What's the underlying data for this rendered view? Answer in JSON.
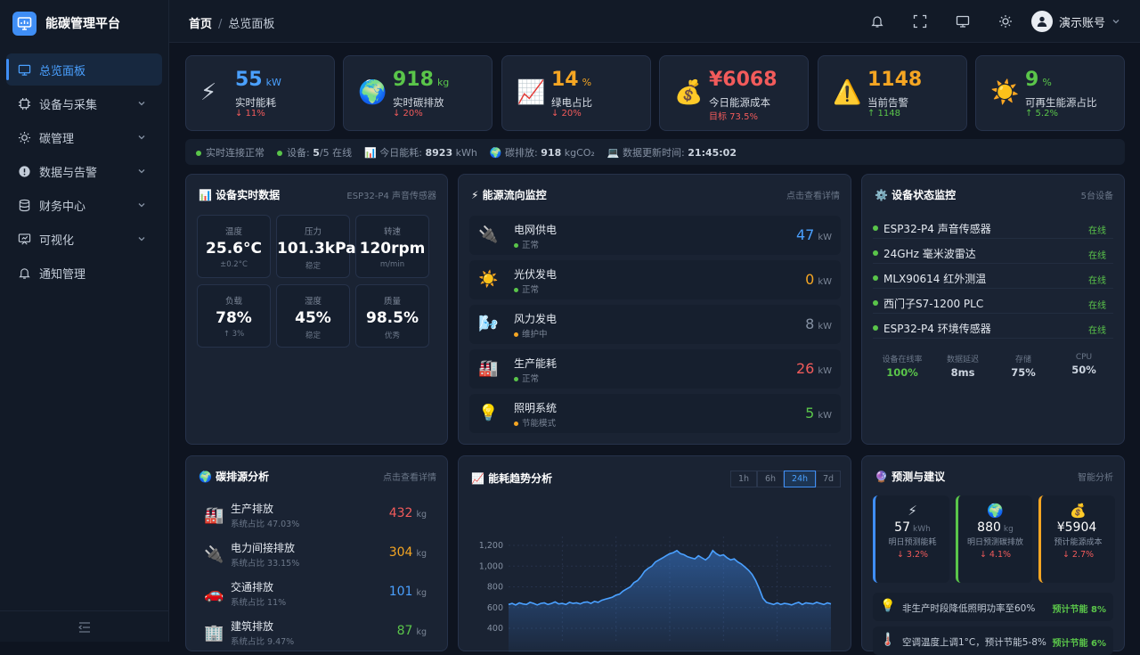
{
  "app": {
    "title": "能碳管理平台"
  },
  "sidebar": {
    "items": [
      {
        "label": "总览面板",
        "icon": "monitor-icon",
        "active": true
      },
      {
        "label": "设备与采集",
        "icon": "chip-icon"
      },
      {
        "label": "碳管理",
        "icon": "sun-icon"
      },
      {
        "label": "数据与告警",
        "icon": "alert-icon"
      },
      {
        "label": "财务中心",
        "icon": "database-icon"
      },
      {
        "label": "可视化",
        "icon": "chart-board-icon"
      },
      {
        "label": "通知管理",
        "icon": "bell-icon"
      }
    ]
  },
  "topbar": {
    "home": "首页",
    "separator": "/",
    "current": "总览面板",
    "user": "演示账号"
  },
  "stats": [
    {
      "icon": "⚡",
      "value": "55",
      "unit": "kW",
      "label": "实时能耗",
      "change": "↓ 11%",
      "color": "#4aa0ff",
      "change_color": "#f25b5b"
    },
    {
      "icon": "🌍",
      "value": "918",
      "unit": "kg",
      "label": "实时碳排放",
      "change": "↓ 20%",
      "color": "#5ac54a",
      "change_color": "#f25b5b"
    },
    {
      "icon": "📈",
      "value": "14",
      "unit": "%",
      "label": "绿电占比",
      "change": "↓ 20%",
      "color": "#f5a623",
      "change_color": "#f25b5b"
    },
    {
      "icon": "💰",
      "value": "¥6068",
      "unit": "",
      "label": "今日能源成本",
      "change": "目标 73.5%",
      "color": "#f25b5b",
      "change_color": "#f25b5b"
    },
    {
      "icon": "⚠️",
      "value": "1148",
      "unit": "",
      "label": "当前告警",
      "change": "↑ 1148",
      "color": "#f5a623",
      "change_color": "#5ac54a"
    },
    {
      "icon": "☀️",
      "value": "9",
      "unit": "%",
      "label": "可再生能源占比",
      "change": "↑ 5.2%",
      "color": "#5ac54a",
      "change_color": "#5ac54a"
    }
  ],
  "status": {
    "conn": "实时连接正常",
    "device_label": "设备:",
    "device_online": "5",
    "device_total": "/5 在线",
    "energy_label": "今日能耗:",
    "energy_value": "8923",
    "energy_unit": "kWh",
    "carbon_label": "碳排放:",
    "carbon_value": "918",
    "carbon_unit": "kgCO₂",
    "update_label": "数据更新时间:",
    "update_value": "21:45:02"
  },
  "sensor_panel": {
    "title": "设备实时数据",
    "hint": "ESP32-P4 声音传感器",
    "items": [
      {
        "label": "温度",
        "value": "25.6°C",
        "sub": "±0.2°C"
      },
      {
        "label": "压力",
        "value": "101.3kPa",
        "sub": "稳定"
      },
      {
        "label": "转速",
        "value": "120rpm",
        "sub": "m/min"
      },
      {
        "label": "负载",
        "value": "78%",
        "sub": "↑ 3%"
      },
      {
        "label": "湿度",
        "value": "45%",
        "sub": "稳定"
      },
      {
        "label": "质量",
        "value": "98.5%",
        "sub": "优秀"
      }
    ]
  },
  "flow_panel": {
    "title": "能源流向监控",
    "hint": "点击查看详情",
    "items": [
      {
        "icon": "🔌",
        "name": "电网供电",
        "status": "正常",
        "status_color": "#5ac54a",
        "value": "47",
        "unit": "kW",
        "color": "#4aa0ff"
      },
      {
        "icon": "☀️",
        "name": "光伏发电",
        "status": "正常",
        "status_color": "#5ac54a",
        "value": "0",
        "unit": "kW",
        "color": "#f5a623"
      },
      {
        "icon": "🌬️",
        "name": "风力发电",
        "status": "维护中",
        "status_color": "#f5a623",
        "value": "8",
        "unit": "kW",
        "color": "#8591a3"
      },
      {
        "icon": "🏭",
        "name": "生产能耗",
        "status": "正常",
        "status_color": "#5ac54a",
        "value": "26",
        "unit": "kW",
        "color": "#f25b5b"
      },
      {
        "icon": "💡",
        "name": "照明系统",
        "status": "节能模式",
        "status_color": "#f5a623",
        "value": "5",
        "unit": "kW",
        "color": "#5ac54a"
      }
    ]
  },
  "device_panel": {
    "title": "设备状态监控",
    "hint": "5台设备",
    "items": [
      {
        "name": "ESP32-P4 声音传感器",
        "status": "在线"
      },
      {
        "name": "24GHz 毫米波雷达",
        "status": "在线"
      },
      {
        "name": "MLX90614 红外测温",
        "status": "在线"
      },
      {
        "name": "西门子S7-1200 PLC",
        "status": "在线"
      },
      {
        "name": "ESP32-P4 环境传感器",
        "status": "在线"
      }
    ],
    "kpis": [
      {
        "label": "设备在线率",
        "value": "100%",
        "color": "#5ac54a"
      },
      {
        "label": "数据延迟",
        "value": "8ms",
        "color": "#cdd5e0"
      },
      {
        "label": "存储",
        "value": "75%",
        "color": "#cdd5e0"
      },
      {
        "label": "CPU",
        "value": "50%",
        "color": "#cdd5e0"
      }
    ]
  },
  "carbon_panel": {
    "title": "碳排源分析",
    "hint": "点击查看详情",
    "items": [
      {
        "icon": "🏭",
        "name": "生产排放",
        "share": "系统占比 47.03%",
        "value": "432",
        "unit": "kg",
        "color": "#f25b5b"
      },
      {
        "icon": "🔌",
        "name": "电力间接排放",
        "share": "系统占比 33.15%",
        "value": "304",
        "unit": "kg",
        "color": "#f5a623"
      },
      {
        "icon": "🚗",
        "name": "交通排放",
        "share": "系统占比 11%",
        "value": "101",
        "unit": "kg",
        "color": "#4aa0ff"
      },
      {
        "icon": "🏢",
        "name": "建筑排放",
        "share": "系统占比 9.47%",
        "value": "87",
        "unit": "kg",
        "color": "#5ac54a"
      }
    ]
  },
  "trend_panel": {
    "title": "能耗趋势分析",
    "ranges": [
      {
        "label": "1h"
      },
      {
        "label": "6h"
      },
      {
        "label": "24h",
        "active": true
      },
      {
        "label": "7d"
      }
    ]
  },
  "chart_data": {
    "type": "area",
    "title": "能耗趋势分析",
    "y_ticks": [
      "1,200",
      "1,000",
      "800",
      "600",
      "400"
    ],
    "ylim": [
      400,
      1200
    ],
    "grid": true,
    "x": [
      0,
      4,
      8,
      12,
      16,
      20,
      24,
      28,
      32,
      36,
      40,
      44,
      48,
      52,
      56,
      60,
      64,
      68,
      72,
      76,
      80,
      84,
      88,
      92,
      96,
      100,
      104,
      108,
      112,
      116,
      120,
      124,
      128,
      132,
      136,
      140,
      144,
      148,
      152,
      156,
      160,
      164,
      168,
      172,
      176,
      180,
      184,
      188,
      192,
      196,
      200,
      204,
      208,
      212,
      216,
      220,
      224,
      228,
      232,
      236,
      240,
      244,
      248,
      252,
      256,
      260,
      264,
      268,
      272,
      276,
      280,
      284,
      288,
      292,
      296,
      300,
      304,
      308,
      312,
      316,
      320,
      324,
      328,
      332,
      336,
      340,
      344,
      348,
      352,
      356,
      360
    ],
    "values": [
      630,
      640,
      625,
      645,
      635,
      630,
      650,
      640,
      625,
      640,
      645,
      630,
      640,
      655,
      635,
      640,
      630,
      650,
      640,
      645,
      635,
      650,
      655,
      640,
      660,
      650,
      670,
      680,
      690,
      700,
      720,
      730,
      760,
      780,
      800,
      840,
      860,
      900,
      950,
      980,
      1000,
      1040,
      1060,
      1080,
      1100,
      1120,
      1130,
      1150,
      1120,
      1110,
      1090,
      1080,
      1070,
      1100,
      1080,
      1060,
      1090,
      1150,
      1120,
      1100,
      1110,
      1080,
      1060,
      1070,
      1040,
      1020,
      990,
      960,
      920,
      860,
      780,
      690,
      650,
      640,
      630,
      645,
      630,
      640,
      635,
      625,
      640,
      650,
      630,
      645,
      640,
      635,
      650,
      640,
      630,
      645,
      635
    ]
  },
  "predict_panel": {
    "title": "预测与建议",
    "hint": "智能分析",
    "cards": [
      {
        "icon": "⚡",
        "value": "57",
        "unit": "kWh",
        "label": "明日预测能耗",
        "change": "↓ 3.2%",
        "color": "#4aa0ff"
      },
      {
        "icon": "🌍",
        "value": "880",
        "unit": "kg",
        "label": "明日预测碳排放",
        "change": "↓ 4.1%",
        "color": "#5ac54a"
      },
      {
        "icon": "💰",
        "value": "¥5904",
        "unit": "",
        "label": "预计能源成本",
        "change": "↓ 2.7%",
        "color": "#f5a623"
      }
    ],
    "suggestions": [
      {
        "icon": "💡",
        "text": "非生产时段降低照明功率至60%",
        "value": "预计节能 8%"
      },
      {
        "icon": "🌡️",
        "text": "空调温度上调1°C，预计节能5-8%",
        "value": "预计节能 6%"
      }
    ]
  }
}
